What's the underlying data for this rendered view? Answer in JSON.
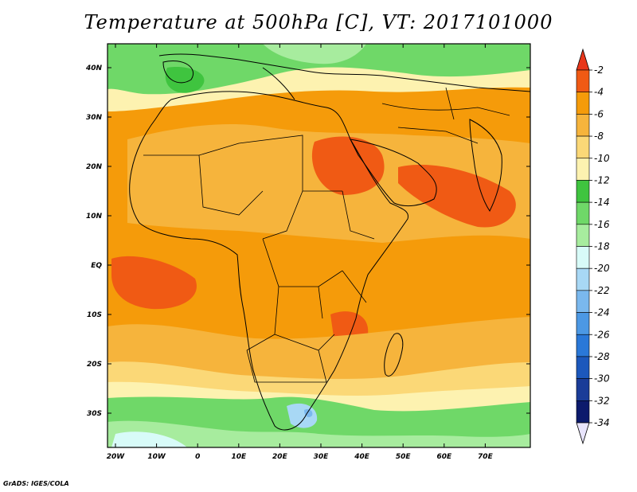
{
  "title": "Temperature at 500hPa [C], VT: 2017101000",
  "credit": "GrADS: IGES/COLA",
  "lat_ticks": [
    "40N",
    "30N",
    "20N",
    "10N",
    "EQ",
    "10S",
    "20S",
    "30S"
  ],
  "lon_ticks": [
    "20W",
    "10W",
    "0",
    "10E",
    "20E",
    "30E",
    "40E",
    "50E",
    "60E",
    "70E"
  ],
  "colorbar": {
    "labels": [
      "-2",
      "-4",
      "-6",
      "-8",
      "-10",
      "-12",
      "-14",
      "-16",
      "-18",
      "-20",
      "-22",
      "-24",
      "-26",
      "-28",
      "-30",
      "-32",
      "-34"
    ],
    "colors": [
      "#e8361a",
      "#f05a14",
      "#f59b0a",
      "#f6b43c",
      "#fbd877",
      "#fdf2b0",
      "#3fc43f",
      "#6fd868",
      "#a7ec9e",
      "#d8fbf8",
      "#a8d8f5",
      "#7ab8ee",
      "#4c98e4",
      "#2a78d8",
      "#1c58bc",
      "#1a3c98",
      "#0c1a6c",
      "#e8e4fc"
    ]
  },
  "colors": {
    "ocean_tropical": "#f59b0a",
    "land_sahara": "#f6b43c",
    "hot_core": "#f05a14",
    "mid_latitude": "#3fc43f",
    "boundaries": "#000000"
  }
}
